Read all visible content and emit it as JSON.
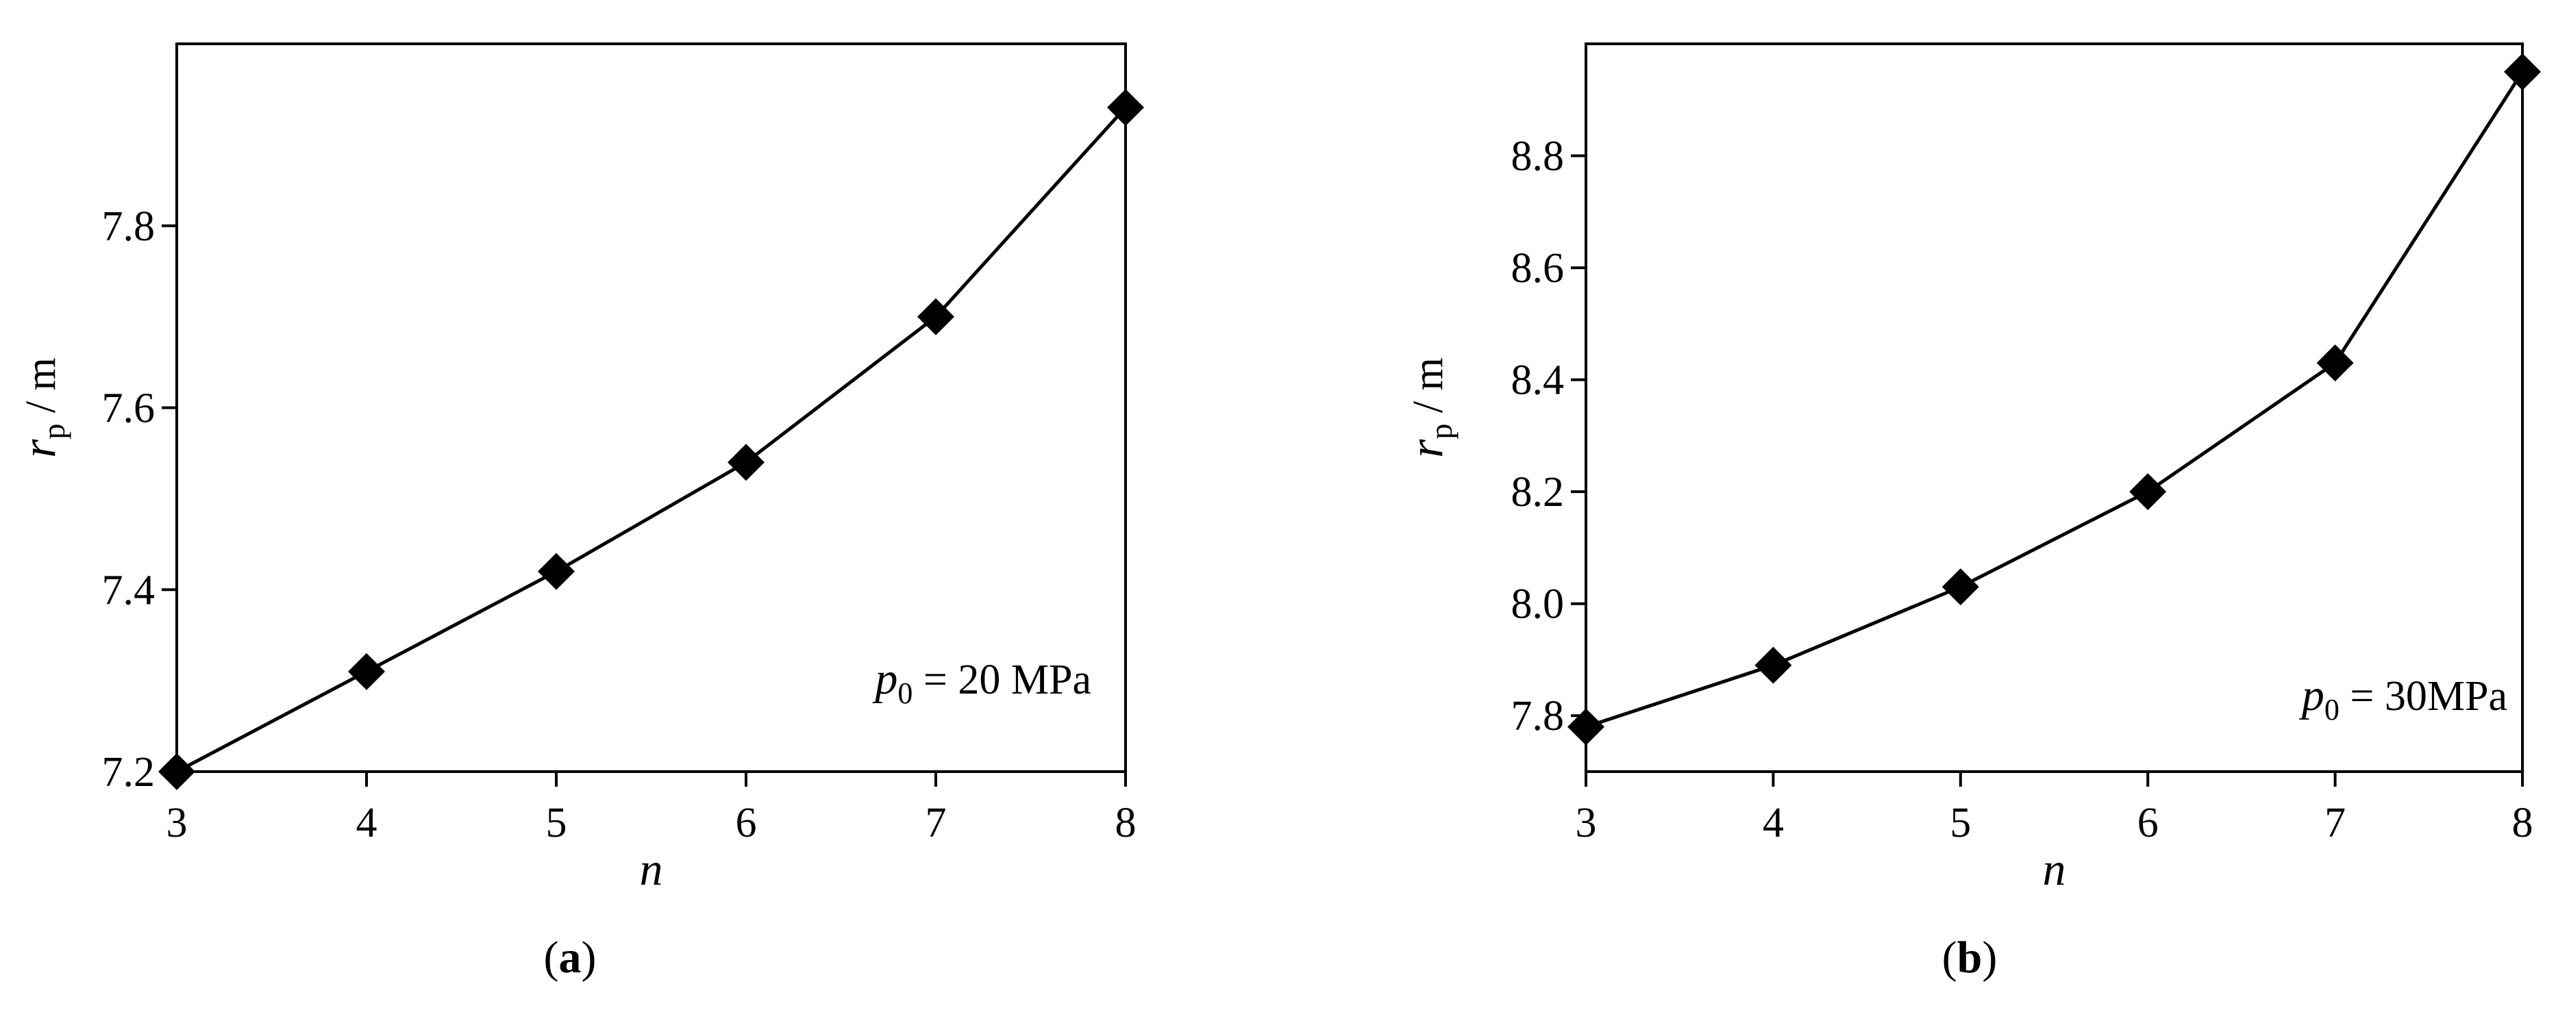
{
  "chart_data": [
    {
      "type": "line",
      "panel_label": "a",
      "xlabel": "n",
      "ylabel": {
        "symbol": "r",
        "subscript": "p",
        "unit": " / m"
      },
      "annotation": {
        "symbol": "p",
        "subscript": "0",
        "text": " = 20 MPa"
      },
      "x": [
        3,
        4,
        5,
        6,
        7,
        8
      ],
      "values": [
        7.2,
        7.31,
        7.42,
        7.54,
        7.7,
        7.93
      ],
      "xlim": [
        3,
        8
      ],
      "ylim": [
        7.2,
        8.0
      ],
      "xticks": [
        "3",
        "4",
        "5",
        "6",
        "7",
        "8"
      ],
      "yticks": [
        "7.2",
        "7.4",
        "7.6",
        "7.8"
      ],
      "marker": "diamond",
      "color": "#000000"
    },
    {
      "type": "line",
      "panel_label": "b",
      "xlabel": "n",
      "ylabel": {
        "symbol": "r",
        "subscript": "p",
        "unit": " / m"
      },
      "annotation": {
        "symbol": "p",
        "subscript": "0",
        "text": " = 30MPa"
      },
      "x": [
        3,
        4,
        5,
        6,
        7,
        8
      ],
      "values": [
        7.78,
        7.89,
        8.03,
        8.2,
        8.43,
        8.95
      ],
      "xlim": [
        3,
        8
      ],
      "ylim": [
        7.7,
        9.0
      ],
      "xticks": [
        "3",
        "4",
        "5",
        "6",
        "7",
        "8"
      ],
      "yticks": [
        "7.8",
        "8.0",
        "8.2",
        "8.4",
        "8.6",
        "8.8"
      ],
      "marker": "diamond",
      "color": "#000000"
    }
  ]
}
